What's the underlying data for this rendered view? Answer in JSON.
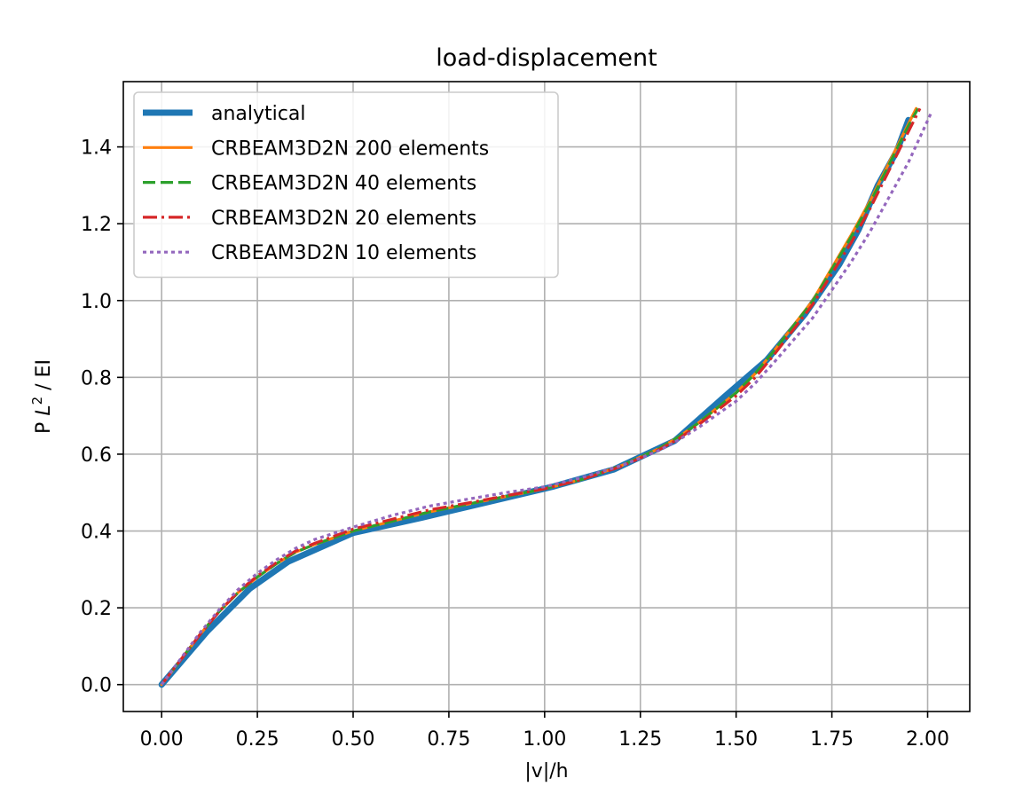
{
  "chart_data": {
    "type": "line",
    "title": "load-displacement",
    "xlabel": "|v|/h",
    "ylabel": "P L² / EI",
    "ylabel_parts": {
      "prefix": "P ",
      "italic": "L",
      "sup": "2",
      "suffix": " / EI"
    },
    "xlim": [
      -0.1,
      2.11
    ],
    "ylim": [
      -0.07,
      1.57
    ],
    "xticks": [
      0.0,
      0.25,
      0.5,
      0.75,
      1.0,
      1.25,
      1.5,
      1.75,
      2.0
    ],
    "xtick_labels": [
      "0.00",
      "0.25",
      "0.50",
      "0.75",
      "1.00",
      "1.25",
      "1.50",
      "1.75",
      "2.00"
    ],
    "yticks": [
      0.0,
      0.2,
      0.4,
      0.6,
      0.8,
      1.0,
      1.2,
      1.4
    ],
    "ytick_labels": [
      "0.0",
      "0.2",
      "0.4",
      "0.6",
      "0.8",
      "1.0",
      "1.2",
      "1.4"
    ],
    "grid": true,
    "legend_position": "top-left",
    "series": [
      {
        "name": "analytical",
        "color": "#1f77b4",
        "style": "solid",
        "width": "thick",
        "x": [
          0.0,
          0.12,
          0.23,
          0.33,
          0.5,
          0.68,
          0.85,
          1.02,
          1.18,
          1.34,
          1.47,
          1.58,
          1.68,
          1.77,
          1.82,
          1.87,
          1.92,
          1.95
        ],
        "y": [
          0.0,
          0.14,
          0.25,
          0.32,
          0.395,
          0.435,
          0.475,
          0.515,
          0.56,
          0.635,
          0.75,
          0.845,
          0.965,
          1.095,
          1.185,
          1.3,
          1.39,
          1.47
        ]
      },
      {
        "name": "CRBEAM3D2N 200 elements",
        "color": "#ff7f0e",
        "style": "solid",
        "width": "normal",
        "x": [
          0.0,
          0.05,
          0.1,
          0.15,
          0.2,
          0.25,
          0.3,
          0.35,
          0.4,
          0.5,
          0.6,
          0.7,
          0.8,
          0.9,
          1.0,
          1.1,
          1.2,
          1.3,
          1.35,
          1.4,
          1.5,
          1.55,
          1.6,
          1.7,
          1.8,
          1.85,
          1.9,
          1.95,
          1.97
        ],
        "y": [
          0.0,
          0.065,
          0.13,
          0.19,
          0.24,
          0.28,
          0.315,
          0.345,
          0.365,
          0.4,
          0.425,
          0.45,
          0.47,
          0.49,
          0.51,
          0.535,
          0.57,
          0.615,
          0.645,
          0.68,
          0.76,
          0.81,
          0.87,
          1.0,
          1.17,
          1.26,
          1.36,
          1.46,
          1.5
        ]
      },
      {
        "name": "CRBEAM3D2N 40 elements",
        "color": "#2ca02c",
        "style": "dashed",
        "width": "normal",
        "x": [
          0.0,
          0.05,
          0.1,
          0.15,
          0.2,
          0.25,
          0.3,
          0.35,
          0.4,
          0.5,
          0.6,
          0.7,
          0.8,
          0.9,
          1.0,
          1.1,
          1.2,
          1.3,
          1.35,
          1.4,
          1.5,
          1.55,
          1.6,
          1.7,
          1.8,
          1.85,
          1.9,
          1.95,
          1.975
        ],
        "y": [
          0.0,
          0.065,
          0.13,
          0.19,
          0.24,
          0.28,
          0.315,
          0.345,
          0.365,
          0.4,
          0.425,
          0.45,
          0.47,
          0.49,
          0.51,
          0.535,
          0.57,
          0.615,
          0.645,
          0.68,
          0.76,
          0.81,
          0.87,
          0.998,
          1.165,
          1.255,
          1.355,
          1.455,
          1.5
        ]
      },
      {
        "name": "CRBEAM3D2N 20 elements",
        "color": "#d62728",
        "style": "dashdot",
        "width": "normal",
        "x": [
          0.0,
          0.05,
          0.1,
          0.15,
          0.2,
          0.25,
          0.3,
          0.35,
          0.4,
          0.5,
          0.6,
          0.7,
          0.8,
          0.9,
          1.0,
          1.1,
          1.2,
          1.3,
          1.35,
          1.4,
          1.5,
          1.55,
          1.6,
          1.7,
          1.8,
          1.85,
          1.9,
          1.95,
          1.98
        ],
        "y": [
          0.0,
          0.065,
          0.13,
          0.19,
          0.242,
          0.283,
          0.318,
          0.348,
          0.368,
          0.405,
          0.43,
          0.455,
          0.473,
          0.492,
          0.51,
          0.535,
          0.568,
          0.612,
          0.64,
          0.675,
          0.752,
          0.8,
          0.86,
          0.99,
          1.15,
          1.24,
          1.34,
          1.44,
          1.5
        ]
      },
      {
        "name": "CRBEAM3D2N 10 elements",
        "color": "#9467bd",
        "style": "dotted",
        "width": "normal",
        "x": [
          0.0,
          0.05,
          0.1,
          0.15,
          0.2,
          0.25,
          0.3,
          0.35,
          0.4,
          0.5,
          0.6,
          0.7,
          0.8,
          0.9,
          1.0,
          1.1,
          1.2,
          1.3,
          1.35,
          1.4,
          1.5,
          1.55,
          1.6,
          1.7,
          1.8,
          1.85,
          1.9,
          1.95,
          2.01
        ],
        "y": [
          0.0,
          0.068,
          0.135,
          0.195,
          0.248,
          0.29,
          0.325,
          0.355,
          0.378,
          0.41,
          0.44,
          0.465,
          0.483,
          0.5,
          0.515,
          0.54,
          0.57,
          0.61,
          0.637,
          0.668,
          0.738,
          0.785,
          0.84,
          0.955,
          1.1,
          1.18,
          1.27,
          1.36,
          1.49
        ]
      }
    ]
  }
}
